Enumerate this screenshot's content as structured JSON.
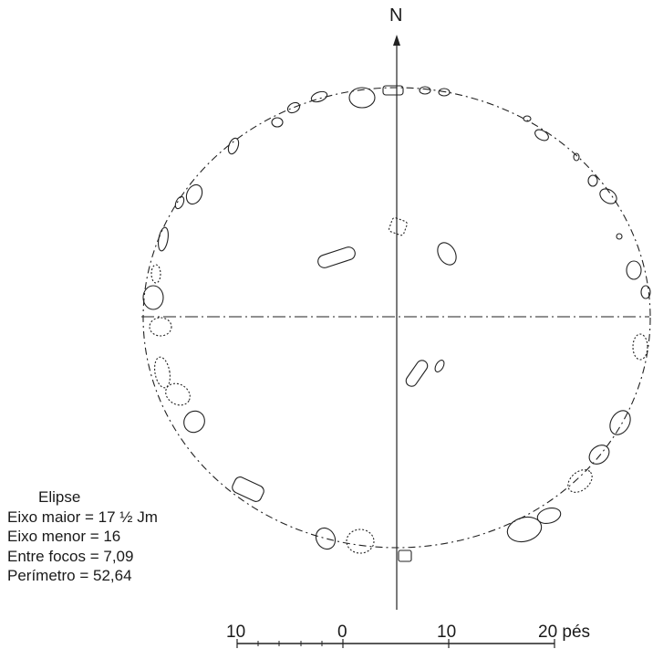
{
  "north_label": "N",
  "legend": {
    "title": "Elipse",
    "major_axis": "Eixo maior = 17 ½  Jm",
    "minor_axis": "Eixo menor = 16",
    "between_foci": "Entre focos = 7,09",
    "perimeter": "Perímetro = 52,64"
  },
  "scale": {
    "labels": [
      "10",
      "0",
      "10",
      "20 pés"
    ]
  },
  "colors": {
    "ink": "#222222",
    "background": "#ffffff"
  }
}
